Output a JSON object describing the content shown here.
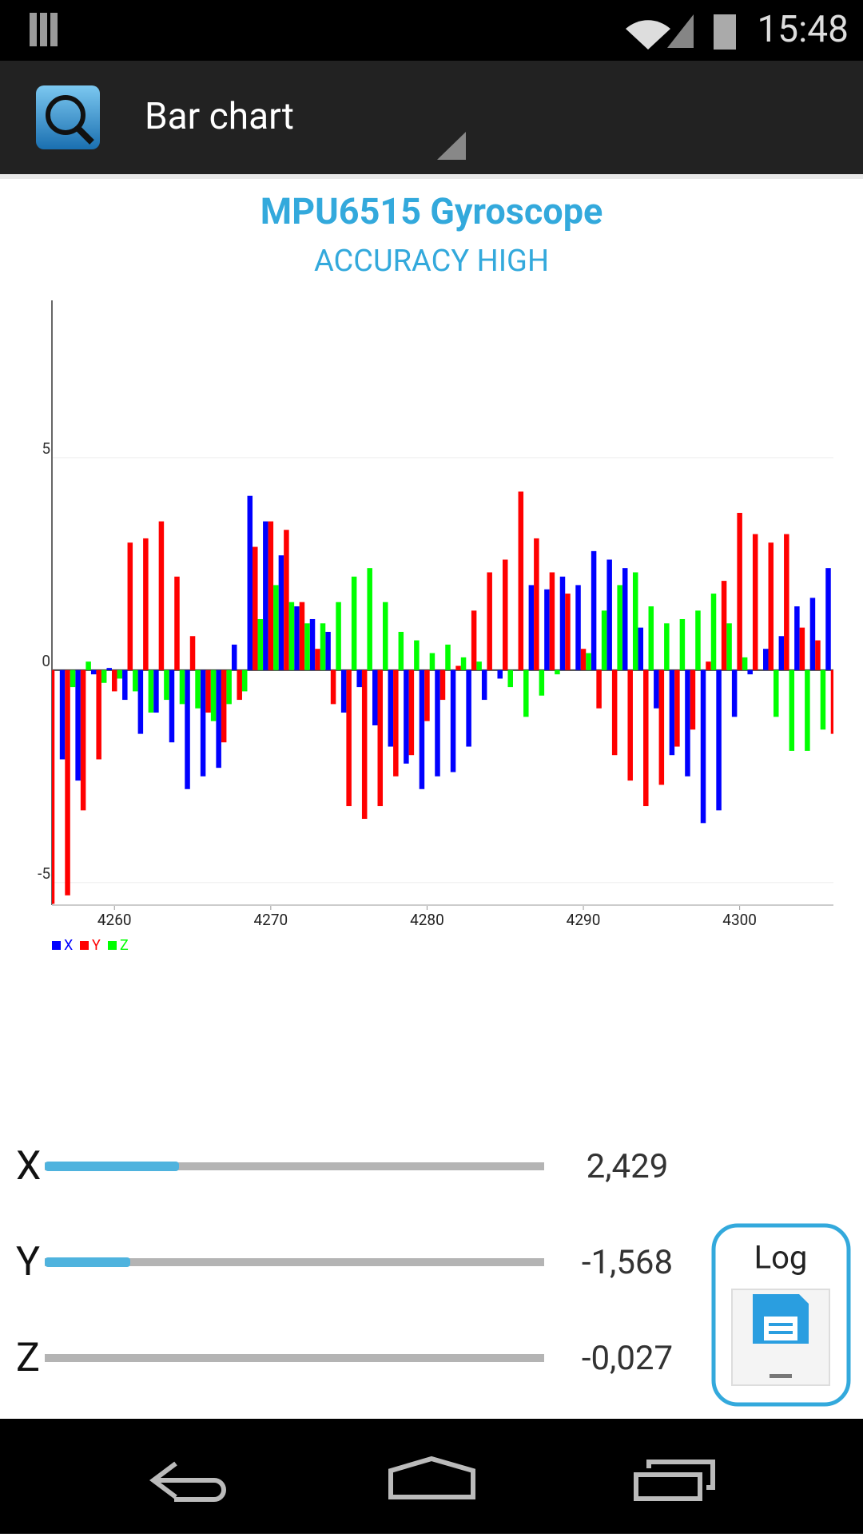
{
  "status_bar": {
    "time": "15:48"
  },
  "action_bar": {
    "title": "Bar chart"
  },
  "chart_data": {
    "type": "bar",
    "title": "MPU6515 Gyroscope",
    "subtitle": "ACCURACY HIGH",
    "x": [
      4256,
      4257,
      4258,
      4259,
      4260,
      4261,
      4262,
      4263,
      4264,
      4265,
      4266,
      4267,
      4268,
      4269,
      4270,
      4271,
      4272,
      4273,
      4274,
      4275,
      4276,
      4277,
      4278,
      4279,
      4280,
      4281,
      4282,
      4283,
      4284,
      4285,
      4286,
      4287,
      4288,
      4289,
      4290,
      4291,
      4292,
      4293,
      4294,
      4295,
      4296,
      4297,
      4298,
      4299,
      4300,
      4301,
      4302,
      4303,
      4304,
      4305,
      4306
    ],
    "series": [
      {
        "name": "X",
        "color": "#0000ff",
        "values": [
          null,
          -2.1,
          -2.6,
          -0.1,
          0.05,
          -0.7,
          -1.5,
          -1.0,
          -1.7,
          -2.8,
          -2.5,
          -2.3,
          0.6,
          4.1,
          3.5,
          2.7,
          1.5,
          1.2,
          0.9,
          -1.0,
          -0.4,
          -1.3,
          -1.8,
          -2.2,
          -2.8,
          -2.5,
          -2.4,
          -1.8,
          -0.7,
          -0.2,
          0.0,
          2.0,
          1.9,
          2.2,
          2.0,
          2.8,
          2.6,
          2.4,
          1.0,
          -0.9,
          -2.0,
          -2.5,
          -3.6,
          -3.3,
          -1.1,
          -0.1,
          0.5,
          0.8,
          1.5,
          1.7,
          2.4
        ]
      },
      {
        "name": "Y",
        "color": "#ff0000",
        "values": [
          -5.5,
          -5.3,
          -3.3,
          -2.1,
          -0.5,
          3.0,
          3.1,
          3.5,
          2.2,
          0.8,
          -1.0,
          -1.7,
          -0.7,
          2.9,
          3.5,
          3.3,
          1.6,
          0.5,
          -0.8,
          -3.2,
          -3.5,
          -3.2,
          -2.5,
          -2.0,
          -1.2,
          -0.7,
          0.1,
          1.4,
          2.3,
          2.6,
          4.2,
          3.1,
          2.3,
          1.8,
          0.5,
          -0.9,
          -2.0,
          -2.6,
          -3.2,
          -2.7,
          -1.8,
          -1.4,
          0.2,
          2.1,
          3.7,
          3.2,
          3.0,
          3.2,
          1.0,
          0.7,
          -1.5
        ]
      },
      {
        "name": "Z",
        "color": "#00ff00",
        "values": [
          null,
          -0.4,
          0.2,
          -0.3,
          -0.2,
          -0.5,
          -1.0,
          -0.7,
          -0.8,
          -0.9,
          -1.2,
          -0.8,
          -0.5,
          1.2,
          2.0,
          1.6,
          1.1,
          1.1,
          1.6,
          2.2,
          2.4,
          1.6,
          0.9,
          0.7,
          0.4,
          0.6,
          0.3,
          0.2,
          0.0,
          -0.4,
          -1.1,
          -0.6,
          -0.1,
          0.0,
          0.4,
          1.4,
          2.0,
          2.3,
          1.5,
          1.1,
          1.2,
          1.4,
          1.8,
          1.1,
          0.3,
          0.0,
          -1.1,
          -1.9,
          -1.9,
          -1.4,
          null
        ]
      }
    ],
    "xlim": [
      4256,
      4306
    ],
    "ylim": [
      -5.53,
      8.7
    ],
    "xticks": [
      4260,
      4270,
      4280,
      4290,
      4300
    ],
    "yticks": [
      -5,
      0,
      5
    ],
    "grid": true,
    "legend": "bottom-left"
  },
  "sensors": [
    {
      "label": "X",
      "value": "2,429"
    },
    {
      "label": "Y",
      "value": "-1,568"
    },
    {
      "label": "Z",
      "value": "-0,027"
    }
  ],
  "log_button": {
    "label": "Log"
  }
}
